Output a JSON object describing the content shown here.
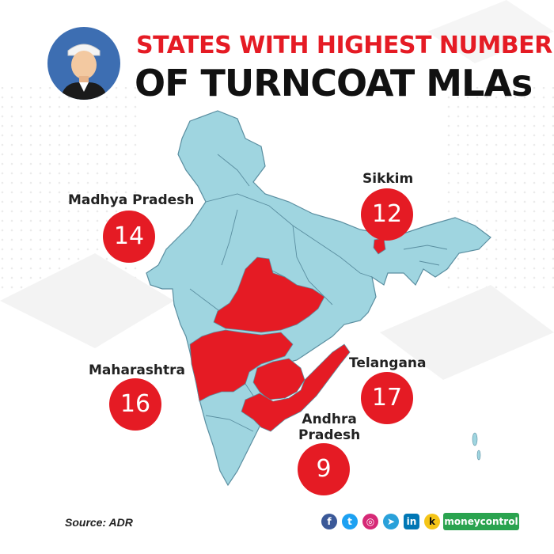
{
  "title": {
    "line1": "STATES WITH HIGHEST NUMBER",
    "line2": "OF TURNCOAT MLAs"
  },
  "colors": {
    "title_accent": "#e51b24",
    "highlight_state": "#e51b24",
    "base_state": "#9fd5e0",
    "border": "#5a8ea0"
  },
  "states": [
    {
      "name": "Madhya Pradesh",
      "count": "14"
    },
    {
      "name": "Sikkim",
      "count": "12"
    },
    {
      "name": "Maharashtra",
      "count": "16"
    },
    {
      "name": "Telangana",
      "count": "17"
    },
    {
      "name": "Andhra\nPradesh",
      "count": "9"
    }
  ],
  "footer": {
    "source": "Source: ADR",
    "social_icons": [
      "facebook-icon",
      "twitter-icon",
      "instagram-icon",
      "telegram-icon",
      "linkedin-icon",
      "koo-icon"
    ],
    "brand": "moneycontrol"
  }
}
